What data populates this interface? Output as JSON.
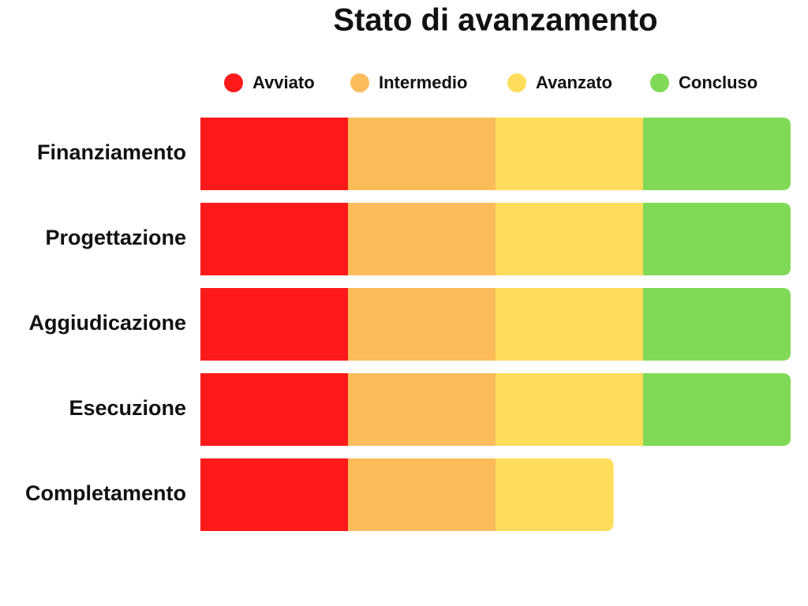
{
  "chart_data": {
    "type": "stacked-bar-horizontal",
    "title": "Stato di avanzamento",
    "categories": [
      "Finanziamento",
      "Progettazione",
      "Aggiudicazione",
      "Esecuzione",
      "Completamento"
    ],
    "series": [
      {
        "name": "Avviato",
        "color": "#fe1a1b",
        "values": [
          25,
          25,
          25,
          25,
          25
        ]
      },
      {
        "name": "Intermedio",
        "color": "#fcbc5a",
        "values": [
          25,
          25,
          25,
          25,
          25
        ]
      },
      {
        "name": "Avanzato",
        "color": "#fedd5c",
        "values": [
          25,
          25,
          25,
          25,
          20
        ]
      },
      {
        "name": "Concluso",
        "color": "#80d957",
        "values": [
          25,
          25,
          25,
          25,
          0
        ]
      }
    ],
    "legend": "top"
  }
}
